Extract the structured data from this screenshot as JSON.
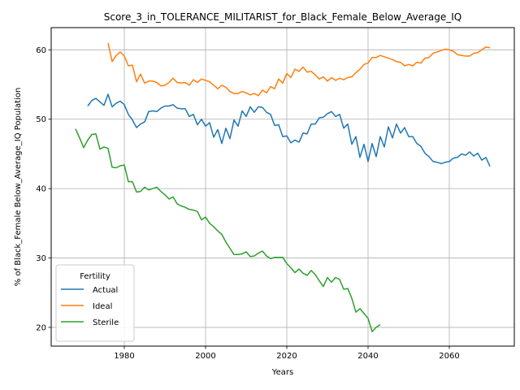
{
  "chart_data": {
    "type": "line",
    "title": "Score_3_in_TOLERANCE_MILITARIST_for_Black_Female_Below_Average_IQ",
    "xlabel": "Years",
    "ylabel": "% of Black_Female Below_Average_IQ Population",
    "xlim": [
      1962,
      2076
    ],
    "ylim": [
      17.3,
      63.2
    ],
    "xticks": [
      1980,
      2000,
      2020,
      2040,
      2060
    ],
    "yticks": [
      20,
      30,
      40,
      50,
      60
    ],
    "grid": true,
    "legend": {
      "title": "Fertility",
      "placement": "lower-left"
    },
    "series": [
      {
        "name": "Actual",
        "color": "#1f77b4",
        "points": [
          [
            1971,
            51.9
          ],
          [
            1972,
            52.7
          ],
          [
            1973,
            53.0
          ],
          [
            1974,
            52.5
          ],
          [
            1975,
            52.0
          ],
          [
            1976,
            53.6
          ],
          [
            1977,
            51.8
          ],
          [
            1978,
            52.3
          ],
          [
            1979,
            52.6
          ],
          [
            1980,
            52.1
          ],
          [
            1981,
            50.7
          ],
          [
            1982,
            49.9
          ],
          [
            1983,
            48.8
          ],
          [
            1984,
            49.3
          ],
          [
            1985,
            49.6
          ],
          [
            1986,
            51.1
          ],
          [
            1987,
            51.2
          ],
          [
            1988,
            51.1
          ],
          [
            1989,
            51.6
          ],
          [
            1990,
            51.9
          ],
          [
            1991,
            51.9
          ],
          [
            1992,
            52.1
          ],
          [
            1993,
            51.6
          ],
          [
            1994,
            51.5
          ],
          [
            1995,
            51.5
          ],
          [
            1996,
            50.4
          ],
          [
            1997,
            50.7
          ],
          [
            1998,
            49.2
          ],
          [
            1999,
            50.0
          ],
          [
            2000,
            49.0
          ],
          [
            2001,
            49.5
          ],
          [
            2002,
            47.4
          ],
          [
            2003,
            48.5
          ],
          [
            2004,
            46.5
          ],
          [
            2005,
            48.7
          ],
          [
            2006,
            47.2
          ],
          [
            2007,
            49.9
          ],
          [
            2008,
            49.0
          ],
          [
            2009,
            51.2
          ],
          [
            2010,
            50.4
          ],
          [
            2011,
            51.8
          ],
          [
            2012,
            51.0
          ],
          [
            2013,
            51.8
          ],
          [
            2014,
            51.7
          ],
          [
            2015,
            51.0
          ],
          [
            2016,
            50.7
          ],
          [
            2017,
            49.1
          ],
          [
            2018,
            49.2
          ],
          [
            2019,
            47.5
          ],
          [
            2020,
            47.6
          ],
          [
            2021,
            46.6
          ],
          [
            2022,
            47.0
          ],
          [
            2023,
            46.7
          ],
          [
            2024,
            48.0
          ],
          [
            2025,
            47.9
          ],
          [
            2026,
            49.3
          ],
          [
            2027,
            49.3
          ],
          [
            2028,
            50.2
          ],
          [
            2029,
            50.3
          ],
          [
            2030,
            50.8
          ],
          [
            2031,
            51.1
          ],
          [
            2032,
            50.4
          ],
          [
            2033,
            50.7
          ],
          [
            2034,
            48.7
          ],
          [
            2035,
            49.3
          ],
          [
            2036,
            46.4
          ],
          [
            2037,
            47.5
          ],
          [
            2038,
            44.5
          ],
          [
            2039,
            46.4
          ],
          [
            2040,
            43.9
          ],
          [
            2041,
            46.5
          ],
          [
            2042,
            44.6
          ],
          [
            2043,
            47.5
          ],
          [
            2044,
            46.0
          ],
          [
            2045,
            48.9
          ],
          [
            2046,
            47.3
          ],
          [
            2047,
            49.3
          ],
          [
            2048,
            48.0
          ],
          [
            2049,
            48.8
          ],
          [
            2050,
            47.5
          ],
          [
            2051,
            47.5
          ],
          [
            2052,
            46.5
          ],
          [
            2053,
            46.1
          ],
          [
            2054,
            45.1
          ],
          [
            2055,
            44.6
          ],
          [
            2056,
            43.9
          ],
          [
            2057,
            43.8
          ],
          [
            2058,
            43.6
          ],
          [
            2059,
            43.8
          ],
          [
            2060,
            43.9
          ],
          [
            2061,
            44.4
          ],
          [
            2062,
            44.5
          ],
          [
            2063,
            45.0
          ],
          [
            2064,
            44.8
          ],
          [
            2065,
            45.3
          ],
          [
            2066,
            44.7
          ],
          [
            2067,
            45.1
          ],
          [
            2068,
            44.1
          ],
          [
            2069,
            44.5
          ],
          [
            2070,
            43.2
          ]
        ]
      },
      {
        "name": "Ideal",
        "color": "#ff7f0e",
        "points": [
          [
            1976,
            61.0
          ],
          [
            1977,
            58.3
          ],
          [
            1978,
            59.2
          ],
          [
            1979,
            59.7
          ],
          [
            1980,
            59.1
          ],
          [
            1981,
            57.7
          ],
          [
            1982,
            57.8
          ],
          [
            1983,
            55.4
          ],
          [
            1984,
            56.5
          ],
          [
            1985,
            55.2
          ],
          [
            1986,
            55.5
          ],
          [
            1987,
            55.5
          ],
          [
            1988,
            55.3
          ],
          [
            1989,
            54.8
          ],
          [
            1990,
            54.9
          ],
          [
            1991,
            55.3
          ],
          [
            1992,
            55.9
          ],
          [
            1993,
            55.3
          ],
          [
            1994,
            55.2
          ],
          [
            1995,
            55.3
          ],
          [
            1996,
            54.9
          ],
          [
            1997,
            55.7
          ],
          [
            1998,
            55.3
          ],
          [
            1999,
            55.8
          ],
          [
            2000,
            55.6
          ],
          [
            2001,
            55.4
          ],
          [
            2002,
            54.9
          ],
          [
            2003,
            54.4
          ],
          [
            2004,
            54.9
          ],
          [
            2005,
            54.6
          ],
          [
            2006,
            54.0
          ],
          [
            2007,
            53.7
          ],
          [
            2008,
            53.7
          ],
          [
            2009,
            54.0
          ],
          [
            2010,
            53.8
          ],
          [
            2011,
            53.5
          ],
          [
            2012,
            53.7
          ],
          [
            2013,
            53.4
          ],
          [
            2014,
            54.2
          ],
          [
            2015,
            53.8
          ],
          [
            2016,
            54.7
          ],
          [
            2017,
            54.4
          ],
          [
            2018,
            55.8
          ],
          [
            2019,
            55.2
          ],
          [
            2020,
            56.6
          ],
          [
            2021,
            56.0
          ],
          [
            2022,
            57.2
          ],
          [
            2023,
            56.9
          ],
          [
            2024,
            57.5
          ],
          [
            2025,
            56.8
          ],
          [
            2026,
            56.9
          ],
          [
            2027,
            56.4
          ],
          [
            2028,
            55.8
          ],
          [
            2029,
            56.1
          ],
          [
            2030,
            55.5
          ],
          [
            2031,
            56.0
          ],
          [
            2032,
            55.6
          ],
          [
            2033,
            55.9
          ],
          [
            2034,
            55.7
          ],
          [
            2035,
            56.0
          ],
          [
            2036,
            56.1
          ],
          [
            2037,
            56.7
          ],
          [
            2038,
            57.2
          ],
          [
            2039,
            57.9
          ],
          [
            2040,
            58.1
          ],
          [
            2041,
            58.9
          ],
          [
            2042,
            58.9
          ],
          [
            2043,
            59.2
          ],
          [
            2044,
            59.0
          ],
          [
            2045,
            58.8
          ],
          [
            2046,
            58.6
          ],
          [
            2047,
            58.3
          ],
          [
            2048,
            58.2
          ],
          [
            2049,
            57.7
          ],
          [
            2050,
            57.9
          ],
          [
            2051,
            57.7
          ],
          [
            2052,
            58.2
          ],
          [
            2053,
            58.1
          ],
          [
            2054,
            58.8
          ],
          [
            2055,
            58.9
          ],
          [
            2056,
            59.5
          ],
          [
            2057,
            59.7
          ],
          [
            2058,
            59.9
          ],
          [
            2059,
            60.1
          ],
          [
            2060,
            60.0
          ],
          [
            2061,
            59.8
          ],
          [
            2062,
            59.3
          ],
          [
            2063,
            59.2
          ],
          [
            2064,
            59.1
          ],
          [
            2065,
            59.1
          ],
          [
            2066,
            59.5
          ],
          [
            2067,
            59.6
          ],
          [
            2068,
            60.0
          ],
          [
            2069,
            60.4
          ],
          [
            2070,
            60.3
          ]
        ]
      },
      {
        "name": "Sterile",
        "color": "#2ca02c",
        "points": [
          [
            1968,
            48.6
          ],
          [
            1969,
            47.3
          ],
          [
            1970,
            45.9
          ],
          [
            1971,
            47.0
          ],
          [
            1972,
            47.8
          ],
          [
            1973,
            47.9
          ],
          [
            1974,
            45.7
          ],
          [
            1975,
            46.0
          ],
          [
            1976,
            45.8
          ],
          [
            1977,
            43.1
          ],
          [
            1978,
            43.0
          ],
          [
            1979,
            43.3
          ],
          [
            1980,
            43.4
          ],
          [
            1981,
            41.0
          ],
          [
            1982,
            41.0
          ],
          [
            1983,
            39.5
          ],
          [
            1984,
            39.6
          ],
          [
            1985,
            40.2
          ],
          [
            1986,
            39.8
          ],
          [
            1987,
            40.0
          ],
          [
            1988,
            40.2
          ],
          [
            1989,
            39.6
          ],
          [
            1990,
            39.1
          ],
          [
            1991,
            38.5
          ],
          [
            1992,
            38.8
          ],
          [
            1993,
            37.8
          ],
          [
            1994,
            37.5
          ],
          [
            1995,
            37.3
          ],
          [
            1996,
            37.0
          ],
          [
            1997,
            36.9
          ],
          [
            1998,
            36.7
          ],
          [
            1999,
            35.5
          ],
          [
            2000,
            35.9
          ],
          [
            2001,
            35.0
          ],
          [
            2002,
            34.5
          ],
          [
            2003,
            33.9
          ],
          [
            2004,
            33.4
          ],
          [
            2005,
            32.3
          ],
          [
            2006,
            31.4
          ],
          [
            2007,
            30.5
          ],
          [
            2008,
            30.5
          ],
          [
            2009,
            30.6
          ],
          [
            2010,
            30.9
          ],
          [
            2011,
            30.2
          ],
          [
            2012,
            30.3
          ],
          [
            2013,
            30.7
          ],
          [
            2014,
            31.0
          ],
          [
            2015,
            30.3
          ],
          [
            2016,
            29.9
          ],
          [
            2017,
            30.1
          ],
          [
            2018,
            30.1
          ],
          [
            2019,
            30.1
          ],
          [
            2020,
            29.2
          ],
          [
            2021,
            28.6
          ],
          [
            2022,
            27.9
          ],
          [
            2023,
            28.4
          ],
          [
            2024,
            27.8
          ],
          [
            2025,
            27.5
          ],
          [
            2026,
            28.2
          ],
          [
            2027,
            27.6
          ],
          [
            2028,
            26.7
          ],
          [
            2029,
            25.9
          ],
          [
            2030,
            27.2
          ],
          [
            2031,
            26.5
          ],
          [
            2032,
            27.2
          ],
          [
            2033,
            26.9
          ],
          [
            2034,
            25.5
          ],
          [
            2035,
            25.6
          ],
          [
            2036,
            24.2
          ],
          [
            2037,
            22.2
          ],
          [
            2038,
            22.7
          ],
          [
            2039,
            22.0
          ],
          [
            2040,
            21.3
          ],
          [
            2041,
            19.4
          ],
          [
            2042,
            20.0
          ],
          [
            2043,
            20.4
          ]
        ]
      }
    ]
  }
}
